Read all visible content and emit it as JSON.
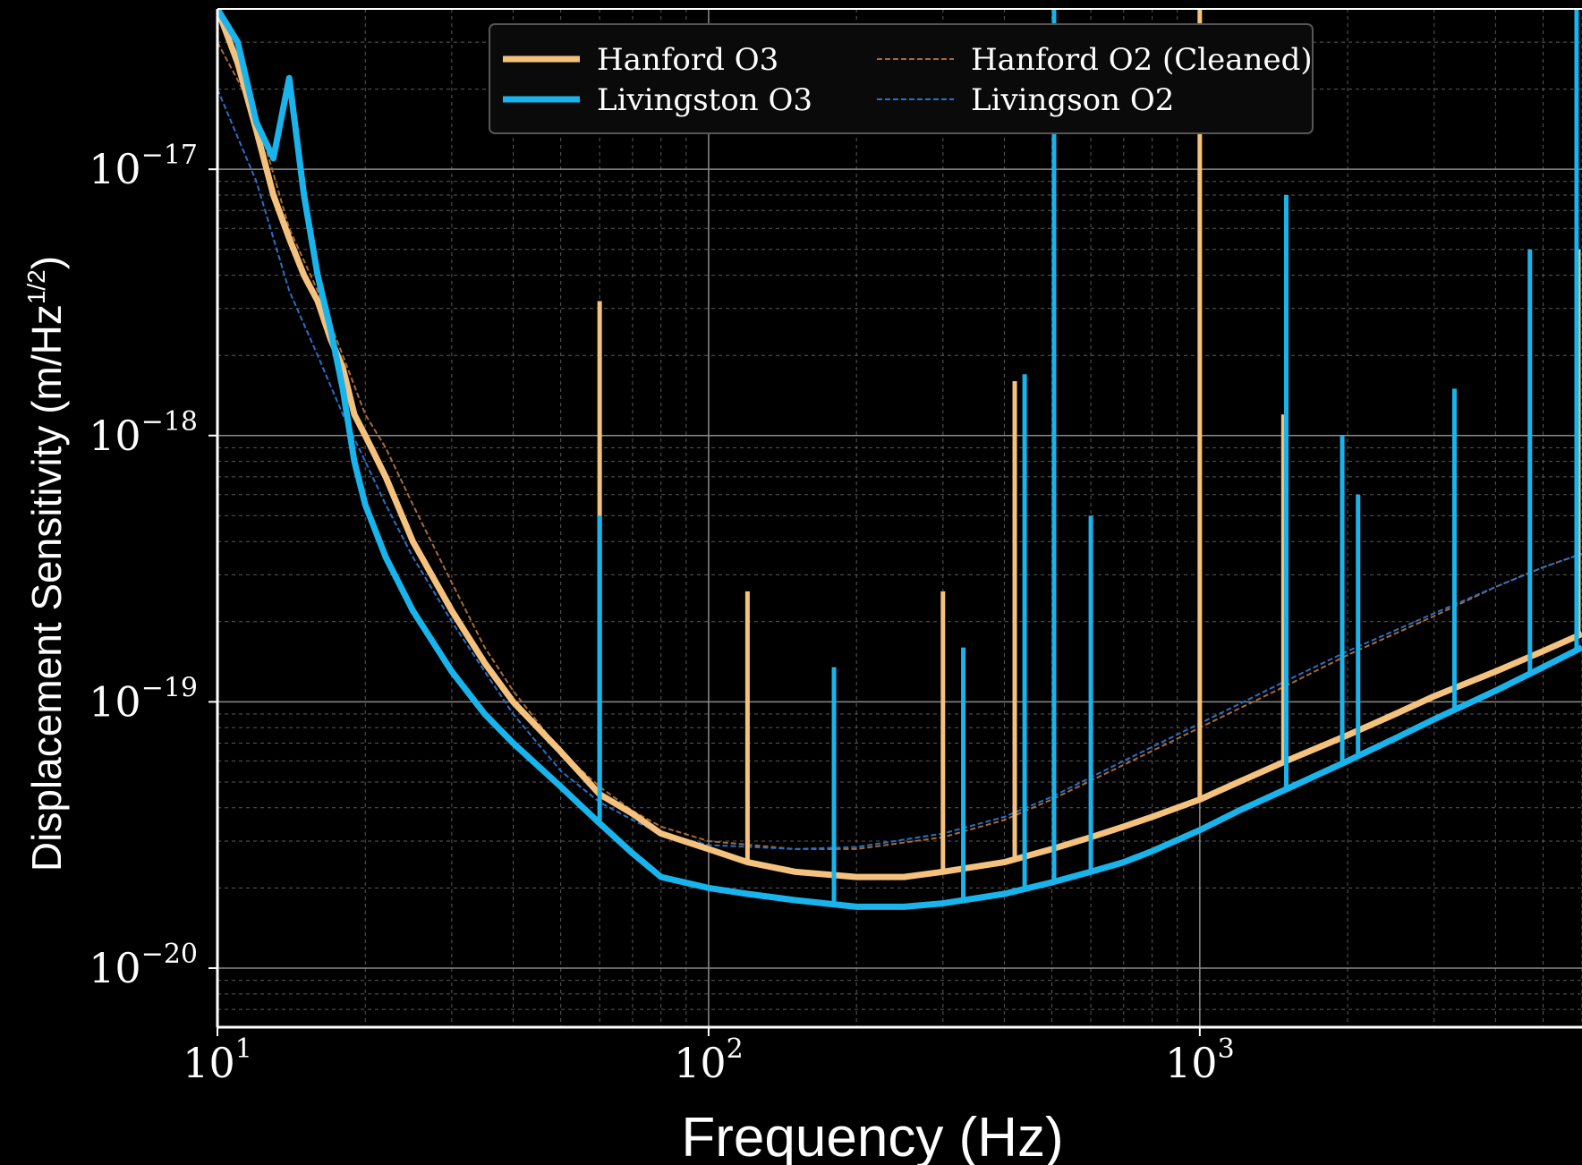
{
  "chart_data": {
    "type": "line",
    "title": "",
    "xlabel": "Frequency (Hz)",
    "ylabel": "Displacement Sensitivity (m/Hz",
    "ylabel_sup": "1/2",
    "ylabel_close": ")",
    "x_scale": "log",
    "y_scale": "log",
    "xlim": [
      10,
      6000
    ],
    "ylim": [
      6e-21,
      4e-17
    ],
    "grid": true,
    "legend_position": "top-center",
    "x_ticks": [
      {
        "value": 10,
        "base": "10",
        "exp": "1"
      },
      {
        "value": 100,
        "base": "10",
        "exp": "2"
      },
      {
        "value": 1000,
        "base": "10",
        "exp": "3"
      }
    ],
    "y_ticks": [
      {
        "value": 1e-17,
        "base": "10",
        "exp": "−17"
      },
      {
        "value": 1e-18,
        "base": "10",
        "exp": "−18"
      },
      {
        "value": 1e-19,
        "base": "10",
        "exp": "−19"
      },
      {
        "value": 1e-20,
        "base": "10",
        "exp": "−20"
      }
    ],
    "series": [
      {
        "name": "Hanford O3",
        "color": "#f5c27e",
        "style": "solid-thick",
        "x": [
          10,
          11,
          12,
          13,
          14,
          15,
          16,
          17,
          18,
          19,
          20,
          22,
          25,
          30,
          35,
          40,
          50,
          60,
          70,
          80,
          100,
          120,
          150,
          200,
          250,
          300,
          400,
          500,
          600,
          700,
          800,
          1000,
          1200,
          1500,
          2000,
          2500,
          3000,
          4000,
          5000,
          6000
        ],
        "y": [
          5e-17,
          2.5e-17,
          1.4e-17,
          8e-18,
          5.5e-18,
          4e-18,
          3.2e-18,
          2.3e-18,
          1.8e-18,
          1.2e-18,
          1e-18,
          7e-19,
          4e-19,
          2.2e-19,
          1.4e-19,
          1e-19,
          6.5e-20,
          4.5e-20,
          3.8e-20,
          3.2e-20,
          2.8e-20,
          2.5e-20,
          2.3e-20,
          2.2e-20,
          2.2e-20,
          2.3e-20,
          2.5e-20,
          2.8e-20,
          3.1e-20,
          3.4e-20,
          3.7e-20,
          4.3e-20,
          5e-20,
          6e-20,
          7.5e-20,
          9e-20,
          1.05e-19,
          1.3e-19,
          1.55e-19,
          1.8e-19
        ]
      },
      {
        "name": "Livingston O3",
        "color": "#1ab4ec",
        "style": "solid-thick",
        "x": [
          10,
          11,
          12,
          13,
          14,
          15,
          16,
          17,
          18,
          19,
          20,
          22,
          25,
          30,
          35,
          40,
          50,
          60,
          70,
          80,
          100,
          120,
          150,
          200,
          250,
          300,
          400,
          500,
          600,
          700,
          800,
          1000,
          1200,
          1500,
          2000,
          2500,
          3000,
          4000,
          5000,
          6000
        ],
        "y": [
          6e-17,
          3e-17,
          1.5e-17,
          1.1e-17,
          2.2e-17,
          8e-18,
          4e-18,
          2.5e-18,
          1.5e-18,
          8e-19,
          5.5e-19,
          3.5e-19,
          2.2e-19,
          1.3e-19,
          9e-20,
          7e-20,
          4.8e-20,
          3.5e-20,
          2.7e-20,
          2.2e-20,
          2e-20,
          1.9e-20,
          1.8e-20,
          1.7e-20,
          1.7e-20,
          1.75e-20,
          1.9e-20,
          2.1e-20,
          2.3e-20,
          2.5e-20,
          2.75e-20,
          3.3e-20,
          3.9e-20,
          4.7e-20,
          6e-20,
          7.3e-20,
          8.6e-20,
          1.1e-19,
          1.35e-19,
          1.6e-19
        ]
      },
      {
        "name": "Hanford O2 (Cleaned)",
        "color": "#a66a3a",
        "style": "dashed-thin",
        "x": [
          10,
          12,
          14,
          16,
          18,
          20,
          22,
          25,
          30,
          35,
          40,
          50,
          60,
          70,
          80,
          100,
          150,
          200,
          300,
          400,
          500,
          700,
          1000,
          1500,
          2000,
          3000,
          4000,
          5000,
          6000
        ],
        "y": [
          3e-17,
          1.6e-17,
          6e-18,
          3.5e-18,
          2e-18,
          1.2e-18,
          9e-19,
          5.5e-19,
          2.8e-19,
          1.6e-19,
          1.1e-19,
          6.5e-20,
          4.8e-20,
          3.9e-20,
          3.4e-20,
          3e-20,
          2.8e-20,
          2.8e-20,
          3.1e-20,
          3.6e-20,
          4.3e-20,
          5.8e-20,
          8e-20,
          1.15e-19,
          1.5e-19,
          2.1e-19,
          2.7e-19,
          3.2e-19,
          3.6e-19
        ]
      },
      {
        "name": "Livingson O2",
        "color": "#2a6fc4",
        "style": "dashed-thin",
        "x": [
          10,
          12,
          14,
          16,
          18,
          20,
          22,
          25,
          30,
          35,
          40,
          50,
          60,
          70,
          80,
          100,
          150,
          200,
          300,
          400,
          500,
          700,
          1000,
          1500,
          2000,
          3000,
          4000,
          5000,
          6000
        ],
        "y": [
          2e-17,
          9e-18,
          3.5e-18,
          2e-18,
          1.2e-18,
          8e-19,
          5.5e-19,
          3.5e-19,
          2e-19,
          1.3e-19,
          9e-20,
          5.5e-20,
          4.2e-20,
          3.6e-20,
          3.2e-20,
          2.9e-20,
          2.8e-20,
          2.85e-20,
          3.2e-20,
          3.7e-20,
          4.4e-20,
          6e-20,
          8.3e-20,
          1.2e-19,
          1.55e-19,
          2.15e-19,
          2.7e-19,
          3.2e-19,
          3.6e-19
        ]
      }
    ],
    "spikes": [
      {
        "series": "Hanford O3",
        "x": 60,
        "y": 3.2e-18
      },
      {
        "series": "Hanford O3",
        "x": 120,
        "y": 2.6e-19
      },
      {
        "series": "Hanford O3",
        "x": 300,
        "y": 2.6e-19
      },
      {
        "series": "Hanford O3",
        "x": 420,
        "y": 1.6e-18
      },
      {
        "series": "Hanford O3",
        "x": 1000,
        "y": 5e-17
      },
      {
        "series": "Hanford O3",
        "x": 1480,
        "y": 1.2e-18
      },
      {
        "series": "Hanford O3",
        "x": 5900,
        "y": 5e-18
      },
      {
        "series": "Livingston O3",
        "x": 60,
        "y": 5e-19
      },
      {
        "series": "Livingston O3",
        "x": 180,
        "y": 1.35e-19
      },
      {
        "series": "Livingston O3",
        "x": 330,
        "y": 1.6e-19
      },
      {
        "series": "Livingston O3",
        "x": 440,
        "y": 1.7e-18
      },
      {
        "series": "Livingston O3",
        "x": 505,
        "y": 5e-17
      },
      {
        "series": "Livingston O3",
        "x": 600,
        "y": 5e-19
      },
      {
        "series": "Livingston O3",
        "x": 1500,
        "y": 8e-18
      },
      {
        "series": "Livingston O3",
        "x": 1950,
        "y": 1e-18
      },
      {
        "series": "Livingston O3",
        "x": 2100,
        "y": 6e-19
      },
      {
        "series": "Livingston O3",
        "x": 3300,
        "y": 1.5e-18
      },
      {
        "series": "Livingston O3",
        "x": 4700,
        "y": 5e-18
      },
      {
        "series": "Livingston O3",
        "x": 5850,
        "y": 5e-17
      }
    ]
  }
}
